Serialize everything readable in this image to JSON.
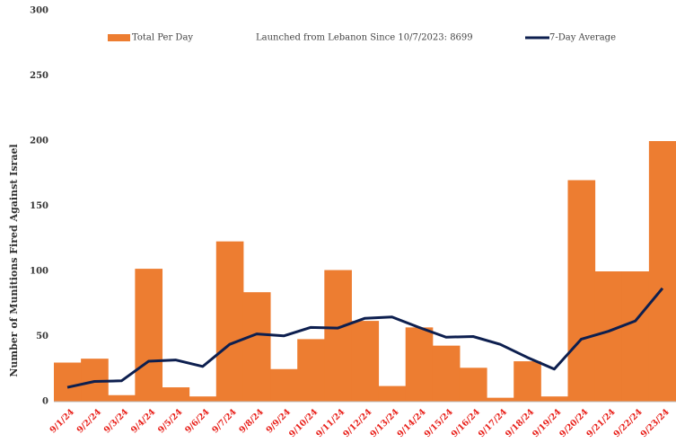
{
  "chart_data": {
    "type": "bar",
    "y_label": "Number of Munitions Fired Against Israel",
    "annotation": "Launched from Lebanon Since 10/7/2023: 8699",
    "categories": [
      "9/1/24",
      "9/2/24",
      "9/3/24",
      "9/4/24",
      "9/5/24",
      "9/6/24",
      "9/7/24",
      "9/8/24",
      "9/9/24",
      "9/10/24",
      "9/11/24",
      "9/12/24",
      "9/13/24",
      "9/14/24",
      "9/15/24",
      "9/16/24",
      "9/17/24",
      "9/18/24",
      "9/19/24",
      "9/20/24",
      "9/21/24",
      "9/22/24",
      "9/23/24"
    ],
    "series": [
      {
        "name": "Total Per Day",
        "type": "bar",
        "color": "#ed7d31",
        "values": [
          30,
          33,
          5,
          102,
          11,
          4,
          123,
          84,
          25,
          48,
          101,
          62,
          12,
          57,
          43,
          26,
          3,
          31,
          4,
          170,
          100,
          100,
          200
        ]
      },
      {
        "name": "7-Day Average",
        "type": "line",
        "color": "#0d1f4f",
        "values": [
          11,
          15.5,
          16,
          31,
          32,
          27,
          44,
          52,
          50.5,
          57,
          56.5,
          64,
          65,
          57,
          49.5,
          50,
          44,
          34,
          25,
          48,
          54,
          62,
          87
        ]
      }
    ],
    "ylim": [
      0,
      300
    ],
    "yticks": [
      0,
      50,
      100,
      150,
      200,
      250,
      300
    ],
    "grid": false
  }
}
